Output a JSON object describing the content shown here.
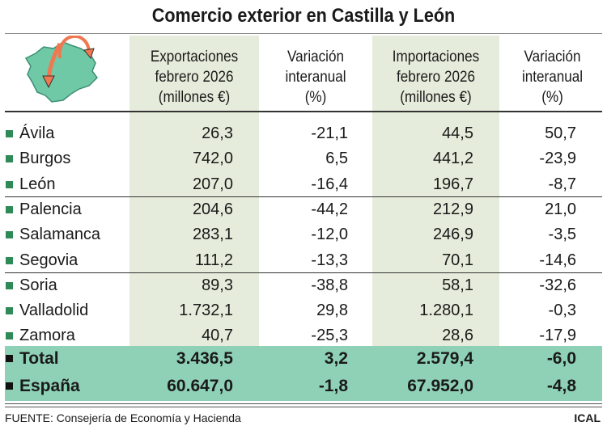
{
  "title": "Comercio exterior en Castilla y León",
  "headers": {
    "exports": [
      "Exportaciones",
      "febrero 2026",
      "(millones €)"
    ],
    "var1": [
      "Variación",
      "interanual",
      "(%)"
    ],
    "imports": [
      "Importaciones",
      "febrero 2026",
      "(millones €)"
    ],
    "var2": [
      "Variación",
      "interanual",
      "(%)"
    ]
  },
  "rows": [
    {
      "name": "Ávila",
      "exp": "26,3",
      "v1": "-21,1",
      "imp": "44,5",
      "v2": "50,7"
    },
    {
      "name": "Burgos",
      "exp": "742,0",
      "v1": "6,5",
      "imp": "441,2",
      "v2": "-23,9"
    },
    {
      "name": "León",
      "exp": "207,0",
      "v1": "-16,4",
      "imp": "196,7",
      "v2": "-8,7"
    },
    {
      "name": "Palencia",
      "exp": "204,6",
      "v1": "-44,2",
      "imp": "212,9",
      "v2": "21,0"
    },
    {
      "name": "Salamanca",
      "exp": "283,1",
      "v1": "-12,0",
      "imp": "246,9",
      "v2": "-3,5"
    },
    {
      "name": "Segovia",
      "exp": "111,2",
      "v1": "-13,3",
      "imp": "70,1",
      "v2": "-14,6"
    },
    {
      "name": "Soria",
      "exp": "89,3",
      "v1": "-38,8",
      "imp": "58,1",
      "v2": "-32,6"
    },
    {
      "name": "Valladolid",
      "exp": "1.732,1",
      "v1": "29,8",
      "imp": "1.280,1",
      "v2": "-0,3"
    },
    {
      "name": "Zamora",
      "exp": "40,7",
      "v1": "-25,3",
      "imp": "28,6",
      "v2": "-17,9"
    }
  ],
  "totals": [
    {
      "name": "Total",
      "exp": "3.436,5",
      "v1": "3,2",
      "imp": "2.579,4",
      "v2": "-6,0"
    },
    {
      "name": "España",
      "exp": "60.647,0",
      "v1": "-1,8",
      "imp": "67.952,0",
      "v2": "-4,8"
    }
  ],
  "footer": {
    "source": "FUENTE: Consejería de Economía y Hacienda",
    "credit": "ICAL"
  },
  "colors": {
    "map": "#6fc9a6",
    "arrow": "#f07850",
    "band": "#8fd1b6",
    "shade": "#e6ecdb",
    "bullet": "#2e8b57"
  }
}
